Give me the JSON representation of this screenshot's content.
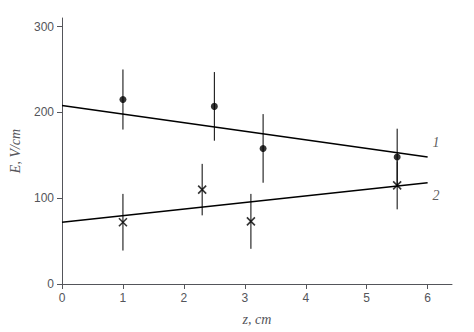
{
  "chart_data": {
    "type": "scatter",
    "xlabel": "z, cm",
    "ylabel": "E, V/cm",
    "xlim": [
      0,
      6.4
    ],
    "ylim": [
      0,
      310
    ],
    "xticks": [
      0,
      1,
      2,
      3,
      4,
      5,
      6
    ],
    "yticks": [
      0,
      100,
      200,
      300
    ],
    "grid": false,
    "series": [
      {
        "type": "line",
        "x": [
          0,
          6
        ],
        "values": [
          208,
          148
        ],
        "color": "black",
        "line_style": "solid"
      },
      {
        "type": "line",
        "x": [
          0,
          6
        ],
        "values": [
          72,
          118
        ],
        "color": "black",
        "line_style": "solid"
      },
      {
        "type": "scatter",
        "x": [
          1.0,
          2.5,
          3.3,
          5.5
        ],
        "values": [
          215,
          207,
          158,
          148
        ],
        "yerr": [
          35,
          40,
          40,
          33
        ],
        "marker": "circle",
        "color": "black"
      },
      {
        "type": "scatter",
        "x": [
          1.0,
          2.3,
          3.1,
          5.5
        ],
        "values": [
          72,
          110,
          73,
          115
        ],
        "yerr": [
          33,
          30,
          32,
          28
        ],
        "marker": "x",
        "color": "black"
      }
    ],
    "annotations": [
      {
        "text": "1",
        "x": 6.08,
        "y": 165
      },
      {
        "text": "2",
        "x": 6.08,
        "y": 103
      }
    ]
  }
}
